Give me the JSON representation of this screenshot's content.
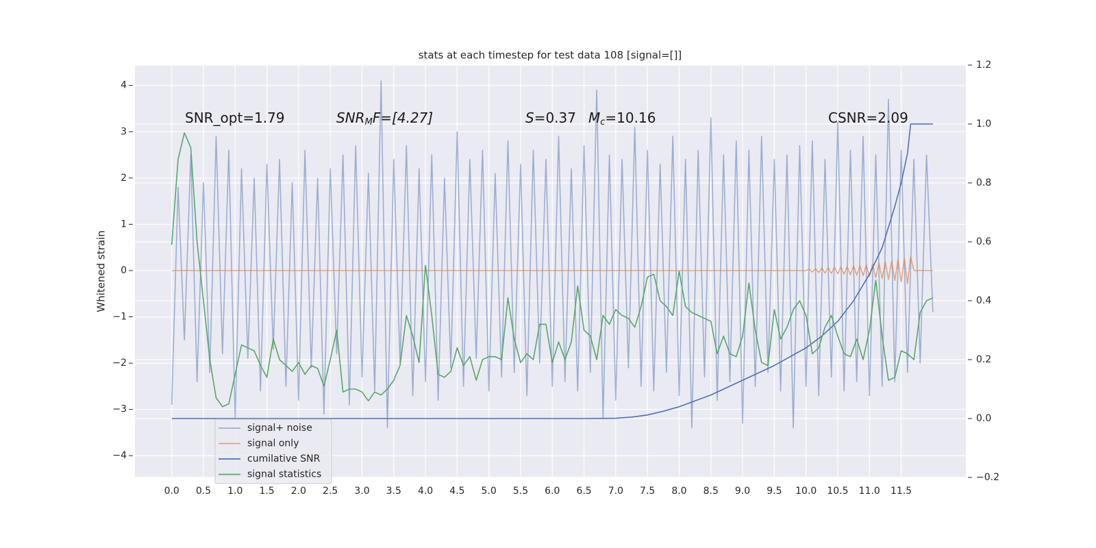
{
  "chart_data": {
    "type": "line",
    "title": "stats at each timestep for test data 108 [signal=[]]",
    "ylabel": "Whitened strain",
    "annotations": [
      [
        "SNR_opt=1.79"
      ],
      [
        "SNR",
        "M",
        "F=[4.27]"
      ],
      [
        "S",
        "=0.37"
      ],
      [
        "M",
        "c",
        "=10.16"
      ],
      [
        "CSNR=2.09"
      ]
    ],
    "grid": true,
    "legend": "lower left",
    "xlim": [
      -0.58,
      12.52
    ],
    "ylim": [
      -4.47,
      4.44
    ],
    "y2lim": [
      -0.2,
      1.2
    ],
    "xticks": [
      {
        "value": 0,
        "label": "0.0"
      },
      0.5,
      {
        "value": 1,
        "label": "1.0"
      },
      1.5,
      {
        "value": 2,
        "label": "2.0"
      },
      2.5,
      {
        "value": 3,
        "label": "3.0"
      },
      3.5,
      {
        "value": 4,
        "label": "4.0"
      },
      4.5,
      {
        "value": 5,
        "label": "5.0"
      },
      5.5,
      {
        "value": 6,
        "label": "6.0"
      },
      6.5,
      {
        "value": 7,
        "label": "7.0"
      },
      7.5,
      {
        "value": 8,
        "label": "8.0"
      },
      8.5,
      {
        "value": 9,
        "label": "9.0"
      },
      9.5,
      {
        "value": 10,
        "label": "10.0"
      },
      10.5,
      {
        "value": 11,
        "label": "11.0"
      },
      11.5
    ],
    "yticks": [
      {
        "value": -4,
        "label": "−4"
      },
      {
        "value": -3,
        "label": "−3"
      },
      {
        "value": -2,
        "label": "−2"
      },
      {
        "value": -1,
        "label": "−1"
      },
      0,
      1,
      2,
      3,
      4
    ],
    "y2ticks": [
      {
        "value": -0.2,
        "label": "−0.2"
      },
      {
        "value": 0,
        "label": "0.0"
      },
      0.2,
      0.4,
      0.6,
      0.8,
      {
        "value": 1,
        "label": "1.0"
      },
      1.2
    ],
    "x": [
      0,
      0.1,
      0.2,
      0.3,
      0.4,
      0.5,
      0.6,
      0.7,
      0.8,
      0.9,
      1,
      1.1,
      1.2,
      1.3,
      1.4,
      1.5,
      1.6,
      1.7,
      1.8,
      1.9,
      2,
      2.1,
      2.2,
      2.3,
      2.4,
      2.5,
      2.6,
      2.7,
      2.8,
      2.9,
      3,
      3.1,
      3.2,
      3.3,
      3.4,
      3.5,
      3.6,
      3.7,
      3.8,
      3.9,
      4,
      4.1,
      4.2,
      4.3,
      4.4,
      4.5,
      4.6,
      4.7,
      4.8,
      4.9,
      5,
      5.1,
      5.2,
      5.3,
      5.4,
      5.5,
      5.6,
      5.7,
      5.8,
      5.9,
      6,
      6.1,
      6.2,
      6.3,
      6.4,
      6.5,
      6.6,
      6.7,
      6.8,
      6.9,
      7,
      7.1,
      7.2,
      7.3,
      7.4,
      7.5,
      7.6,
      7.7,
      7.8,
      7.9,
      8,
      8.1,
      8.2,
      8.3,
      8.4,
      8.5,
      8.6,
      8.7,
      8.8,
      8.9,
      9,
      9.1,
      9.2,
      9.3,
      9.4,
      9.5,
      9.6,
      9.7,
      9.8,
      9.9,
      10,
      10.1,
      10.2,
      10.3,
      10.4,
      10.5,
      10.6,
      10.7,
      10.8,
      10.9,
      11,
      11.1,
      11.2,
      11.3,
      11.4,
      11.5,
      11.6,
      11.7,
      11.8,
      11.9,
      12
    ],
    "series": [
      {
        "name": "signal+ noise",
        "color": "#4c72b0",
        "opacity": 0.5,
        "values": [
          -2.9,
          1.8,
          -1.5,
          2.5,
          -2.4,
          1.9,
          -2.2,
          2.9,
          -1.8,
          2.6,
          -3.2,
          2.2,
          -1.9,
          2.0,
          -2.6,
          2.3,
          -1.7,
          2.4,
          -2.5,
          1.9,
          -2.8,
          2.6,
          -2.1,
          2.0,
          -3.1,
          2.2,
          -1.8,
          2.5,
          -2.9,
          2.7,
          -2.3,
          2.1,
          -2.6,
          4.1,
          -3.4,
          2.4,
          -2.0,
          2.7,
          -2.7,
          2.2,
          -2.4,
          2.5,
          -2.8,
          2.0,
          -2.1,
          3.0,
          -2.5,
          2.4,
          -1.9,
          2.6,
          -2.6,
          2.1,
          -2.3,
          2.8,
          -2.2,
          2.3,
          -2.7,
          2.6,
          -2.0,
          2.4,
          -2.5,
          2.9,
          -2.4,
          2.2,
          -2.6,
          2.7,
          -2.2,
          3.9,
          -3.2,
          2.5,
          -2.8,
          2.4,
          -2.1,
          3.1,
          -2.5,
          2.6,
          -2.6,
          2.3,
          -2.2,
          2.9,
          -2.7,
          2.4,
          -3.4,
          2.6,
          -2.3,
          3.3,
          -2.8,
          2.5,
          -2.4,
          2.8,
          -3.3,
          2.6,
          -2.5,
          2.9,
          -2.2,
          2.4,
          -2.6,
          2.5,
          -3.4,
          2.7,
          -2.5,
          2.8,
          -2.7,
          2.4,
          -2.3,
          3.2,
          -2.6,
          2.6,
          -2.4,
          2.9,
          -2.7,
          2.5,
          -2.5,
          3.7,
          -2.4,
          2.6,
          -2.2,
          2.4,
          -2.0,
          2.5,
          -0.9
        ]
      },
      {
        "name": "signal only",
        "color": "#dd8452",
        "opacity": 0.7,
        "x": [
          0,
          10,
          10.05,
          10.1,
          10.15,
          10.2,
          10.25,
          10.3,
          10.35,
          10.4,
          10.45,
          10.5,
          10.55,
          10.6,
          10.65,
          10.7,
          10.75,
          10.8,
          10.85,
          10.9,
          10.95,
          11,
          11.05,
          11.1,
          11.15,
          11.2,
          11.25,
          11.3,
          11.35,
          11.4,
          11.45,
          11.5,
          11.55,
          11.6,
          11.65,
          11.7,
          12
        ],
        "values": [
          0,
          0,
          0.03,
          -0.03,
          0.04,
          -0.04,
          0.05,
          -0.05,
          0.06,
          -0.06,
          0.07,
          -0.07,
          0.08,
          -0.08,
          0.09,
          -0.09,
          0.1,
          -0.1,
          0.11,
          -0.11,
          0.12,
          -0.13,
          0.14,
          -0.15,
          0.16,
          -0.17,
          0.18,
          -0.19,
          0.2,
          -0.21,
          0.23,
          -0.24,
          0.26,
          -0.28,
          0.3,
          0,
          0
        ]
      },
      {
        "name": "cumilative SNR",
        "color": "#4c72b0",
        "axis": "y2",
        "x": [
          0,
          6.5,
          7,
          7.25,
          7.5,
          7.75,
          8,
          8.25,
          8.5,
          9,
          9.5,
          10,
          10.25,
          10.5,
          10.75,
          11,
          11.2,
          11.4,
          11.5,
          11.6,
          11.65,
          11.7,
          12
        ],
        "values": [
          0,
          0,
          0.001,
          0.005,
          0.012,
          0.025,
          0.04,
          0.06,
          0.08,
          0.13,
          0.18,
          0.24,
          0.28,
          0.33,
          0.4,
          0.49,
          0.58,
          0.72,
          0.8,
          0.9,
          1.0,
          1.0,
          1.0
        ]
      },
      {
        "name": "signal statistics",
        "color": "#55a868",
        "axis": "y2",
        "values": [
          0.59,
          0.88,
          0.97,
          0.92,
          0.6,
          0.4,
          0.2,
          0.07,
          0.04,
          0.05,
          0.15,
          0.25,
          0.24,
          0.23,
          0.18,
          0.14,
          0.27,
          0.2,
          0.18,
          0.16,
          0.19,
          0.15,
          0.18,
          0.17,
          0.11,
          0.2,
          0.3,
          0.09,
          0.1,
          0.1,
          0.09,
          0.06,
          0.09,
          0.08,
          0.1,
          0.13,
          0.18,
          0.35,
          0.28,
          0.19,
          0.52,
          0.35,
          0.15,
          0.14,
          0.16,
          0.24,
          0.18,
          0.21,
          0.13,
          0.2,
          0.21,
          0.21,
          0.2,
          0.41,
          0.27,
          0.19,
          0.22,
          0.2,
          0.32,
          0.32,
          0.19,
          0.26,
          0.2,
          0.26,
          0.45,
          0.3,
          0.28,
          0.2,
          0.35,
          0.32,
          0.37,
          0.35,
          0.34,
          0.31,
          0.38,
          0.48,
          0.49,
          0.4,
          0.38,
          0.35,
          0.5,
          0.38,
          0.36,
          0.35,
          0.34,
          0.33,
          0.22,
          0.28,
          0.22,
          0.21,
          0.28,
          0.46,
          0.3,
          0.19,
          0.18,
          0.37,
          0.27,
          0.31,
          0.37,
          0.4,
          0.35,
          0.22,
          0.24,
          0.31,
          0.35,
          0.28,
          0.22,
          0.21,
          0.27,
          0.2,
          0.3,
          0.47,
          0.28,
          0.13,
          0.14,
          0.23,
          0.22,
          0.2,
          0.36,
          0.4,
          0.41
        ]
      }
    ]
  }
}
